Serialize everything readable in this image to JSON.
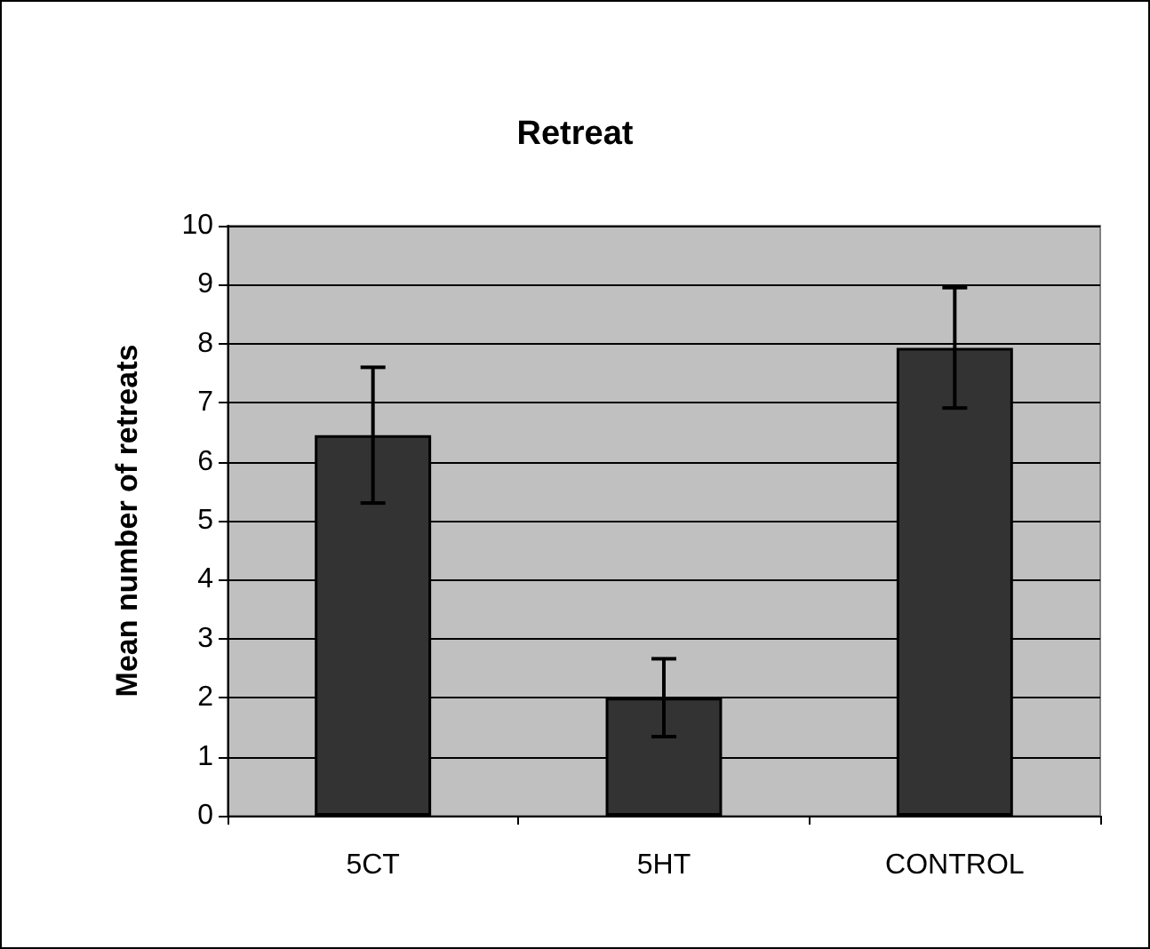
{
  "chart_data": {
    "type": "bar",
    "title": "Retreat",
    "ylabel": "Mean number of retreats",
    "categories": [
      "5CT",
      "5HT",
      "CONTROL"
    ],
    "values": [
      6.45,
      2.0,
      7.93
    ],
    "errors": [
      1.15,
      0.66,
      1.02
    ],
    "color": "#333333",
    "ylim": [
      0,
      10
    ],
    "yticks": [
      0,
      1,
      2,
      3,
      4,
      5,
      6,
      7,
      8,
      9,
      10
    ],
    "grid": "y"
  }
}
